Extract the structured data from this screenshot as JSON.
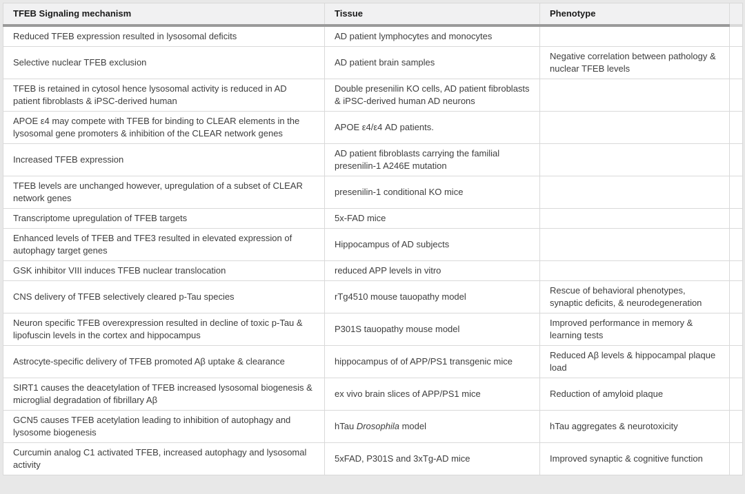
{
  "colors": {
    "page_background": "#e8e8e8",
    "header_background": "#f1f1f2",
    "header_rule": "#9a9a9a",
    "grid_line": "#d9d9d9",
    "body_text": "#3d3d3d",
    "header_text": "#1a1a1a"
  },
  "table": {
    "columns": [
      "TFEB Signaling mechanism",
      "Tissue",
      "Phenotype"
    ],
    "rows": [
      {
        "mechanism": "Reduced TFEB expression resulted in lysosomal deficits",
        "tissue": "AD patient lymphocytes and monocytes",
        "phenotype": ""
      },
      {
        "mechanism": "Selective nuclear TFEB exclusion",
        "tissue": "AD patient brain samples",
        "phenotype": "Negative correlation between pathology & nuclear TFEB levels"
      },
      {
        "mechanism": "TFEB is retained in cytosol hence lysosomal activity is reduced in AD patient fibroblasts & iPSC-derived human",
        "tissue": "Double presenilin KO cells, AD patient fibroblasts & iPSC-derived human AD neurons",
        "phenotype": ""
      },
      {
        "mechanism": "APOE ε4 may compete with TFEB for binding to CLEAR elements in the lysosomal gene promoters & inhibition of the CLEAR network genes",
        "tissue": "APOE ε4/ε4 AD patients.",
        "phenotype": ""
      },
      {
        "mechanism": "Increased TFEB expression",
        "tissue": "AD patient fibroblasts carrying the familial presenilin-1 A246E mutation",
        "phenotype": ""
      },
      {
        "mechanism": "TFEB levels are unchanged however, upregulation of a subset of CLEAR network genes",
        "tissue": "presenilin-1 conditional KO mice",
        "phenotype": ""
      },
      {
        "mechanism": "Transcriptome upregulation of TFEB targets",
        "tissue": "5x-FAD mice",
        "phenotype": ""
      },
      {
        "mechanism": "Enhanced levels of TFEB and TFE3 resulted in elevated expression of autophagy target genes",
        "tissue": "Hippocampus of AD subjects",
        "phenotype": ""
      },
      {
        "mechanism": "GSK inhibitor VIII induces TFEB nuclear translocation",
        "tissue": "reduced APP levels in vitro",
        "phenotype": ""
      },
      {
        "mechanism": "CNS delivery of TFEB selectively cleared p-Tau species",
        "tissue": "rTg4510 mouse tauopathy model",
        "phenotype": "Rescue of behavioral phenotypes, synaptic deficits, & neurodegeneration"
      },
      {
        "mechanism": "Neuron specific TFEB overexpression resulted in decline of toxic p-Tau & lipofuscin levels in the cortex and hippocampus",
        "tissue": "P301S tauopathy mouse model",
        "phenotype": "Improved performance in memory & learning tests"
      },
      {
        "mechanism": "Astrocyte-specific delivery of TFEB promoted Aβ uptake & clearance",
        "tissue": "hippocampus of of APP/PS1 transgenic mice",
        "phenotype": "Reduced Aβ levels & hippocampal plaque load"
      },
      {
        "mechanism": "SIRT1 causes the deacetylation of TFEB increased lysosomal biogenesis & microglial degradation of fibrillary Aβ",
        "tissue": "ex vivo brain slices of APP/PS1 mice",
        "phenotype": "Reduction of amyloid plaque"
      },
      {
        "mechanism": "GCN5 causes TFEB acetylation leading to inhibition of autophagy and lysosome biogenesis",
        "tissue": "hTau *Drosophila* model",
        "phenotype": "hTau aggregates & neurotoxicity"
      },
      {
        "mechanism": "Curcumin analog C1 activated TFEB, increased autophagy and lysosomal activity",
        "tissue": "5xFAD, P301S and 3xTg-AD mice",
        "phenotype": "Improved synaptic & cognitive function"
      }
    ]
  }
}
